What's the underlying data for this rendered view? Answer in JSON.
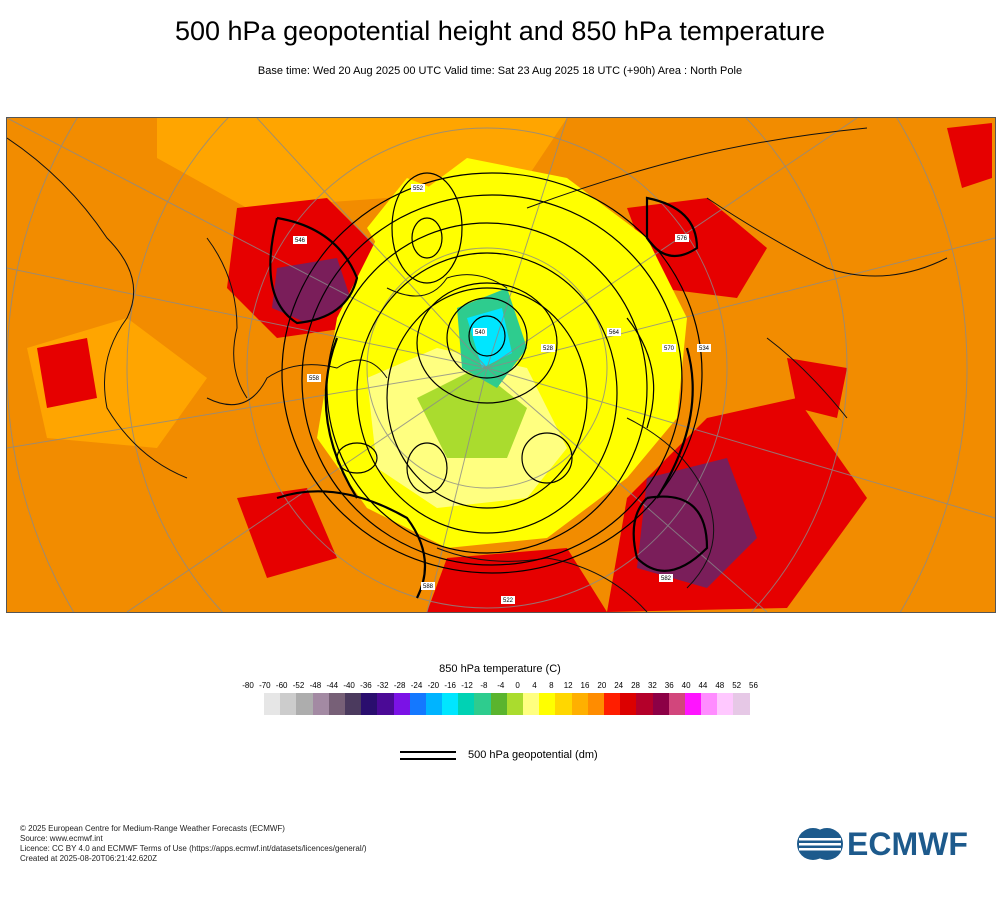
{
  "header": {
    "title": "500 hPa geopotential height and 850 hPa temperature",
    "subtitle": "Base time: Wed 20 Aug 2025 00 UTC Valid time: Sat 23 Aug 2025 18 UTC (+90h) Area : North Pole"
  },
  "legend": {
    "title": "850 hPa temperature (C)",
    "ticks": [
      "-80",
      "-70",
      "-60",
      "-52",
      "-48",
      "-44",
      "-40",
      "-36",
      "-32",
      "-28",
      "-24",
      "-20",
      "-16",
      "-12",
      "-8",
      "-4",
      "0",
      "4",
      "8",
      "12",
      "16",
      "20",
      "24",
      "28",
      "32",
      "36",
      "40",
      "44",
      "48",
      "52",
      "56"
    ],
    "colors": [
      "#e6e6e6",
      "#cccccc",
      "#adadad",
      "#a38aa3",
      "#776077",
      "#4b3a5e",
      "#2a0e6e",
      "#4b0a96",
      "#7b12e6",
      "#1478ff",
      "#00b4ff",
      "#00e6ff",
      "#00d2b4",
      "#2ecc8e",
      "#5ab42e",
      "#aadc2e",
      "#ffff80",
      "#ffff00",
      "#ffd700",
      "#ffb000",
      "#ff8c00",
      "#ff1e00",
      "#dc0000",
      "#b4002a",
      "#8c0046",
      "#d2467c",
      "#ff14ff",
      "#ff8cff",
      "#ffc8ff",
      "#e6c8e6"
    ],
    "contour_label": "500 hPa geopotential (dm)"
  },
  "map": {
    "contour_labels": [
      "546",
      "552",
      "558",
      "564",
      "570",
      "576",
      "582",
      "588",
      "540",
      "534",
      "528",
      "522"
    ]
  },
  "footer": {
    "line1": "© 2025 European Centre for Medium-Range Weather Forecasts (ECMWF)",
    "line2": "Source: www.ecmwf.int",
    "line3": "Licence: CC BY 4.0 and ECMWF Terms of Use (https://apps.ecmwf.int/datasets/licences/general/)",
    "line4": "Created at 2025-08-20T06:21:42.620Z"
  },
  "logo": {
    "text": "ECMWF"
  }
}
